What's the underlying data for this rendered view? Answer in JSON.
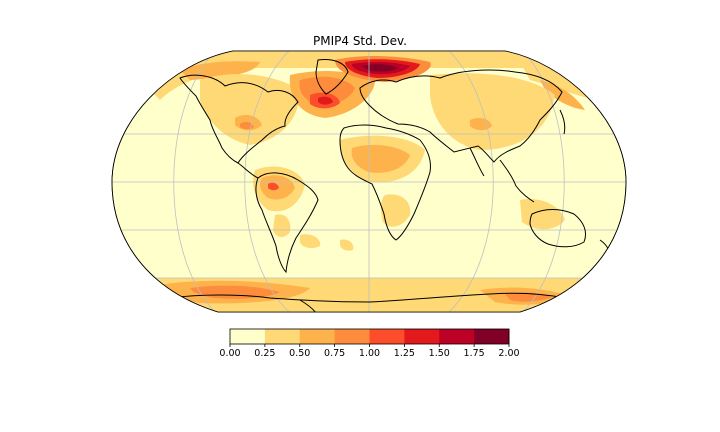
{
  "title": "PMIP4 Std. Dev.",
  "projection": "Robinson",
  "gridlines": true,
  "colormap": {
    "name": "YlOrRd",
    "levels": [
      0.0,
      0.25,
      0.5,
      0.75,
      1.0,
      1.25,
      1.5,
      1.75,
      2.0
    ],
    "bin_colors": [
      "#ffffcc",
      "#fed976",
      "#feb24c",
      "#fd8d3c",
      "#fc4e2a",
      "#e31a1c",
      "#bd0026",
      "#800026"
    ]
  },
  "colorbar": {
    "orientation": "horizontal",
    "tick_labels": [
      "0.00",
      "0.25",
      "0.50",
      "0.75",
      "1.00",
      "1.25",
      "1.50",
      "1.75",
      "2.00"
    ]
  },
  "colors": {
    "background": "#ffffcc",
    "coastline": "#000000",
    "gridline": "#bfbfbf"
  }
}
